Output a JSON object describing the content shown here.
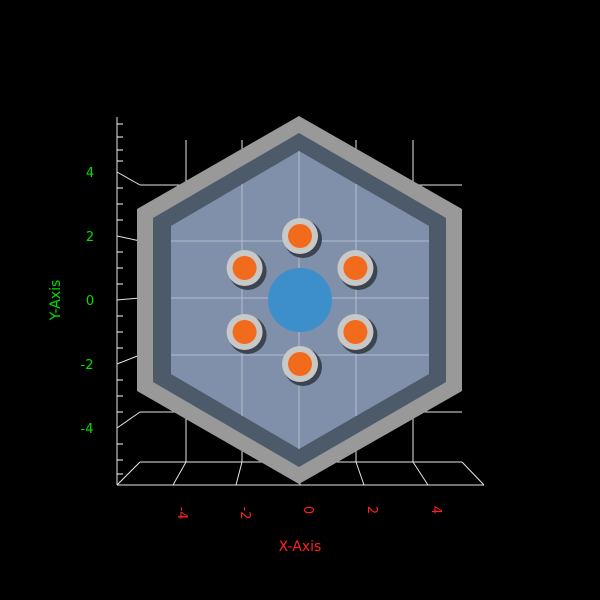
{
  "axes": {
    "x_label": "X-Axis",
    "y_label": "Y-Axis",
    "x_ticks": [
      "-4",
      "-2",
      "0",
      "2",
      "4"
    ],
    "y_ticks": [
      "4",
      "2",
      "0",
      "-2",
      "-4"
    ],
    "x_color": "#ff2020",
    "y_color": "#00e000"
  },
  "colors": {
    "background": "#000000",
    "outer_ring": "#999999",
    "inner_ring": "#4d5a6a",
    "interior": "#8090aa",
    "central_disk": "#3d8fcc",
    "pin_fuel": "#f26b1d",
    "pin_cladding": "#c8c8c8",
    "pin_shadow": "#3c4450"
  },
  "pins": {
    "count": 6,
    "ring_radius_units": 2.0
  }
}
